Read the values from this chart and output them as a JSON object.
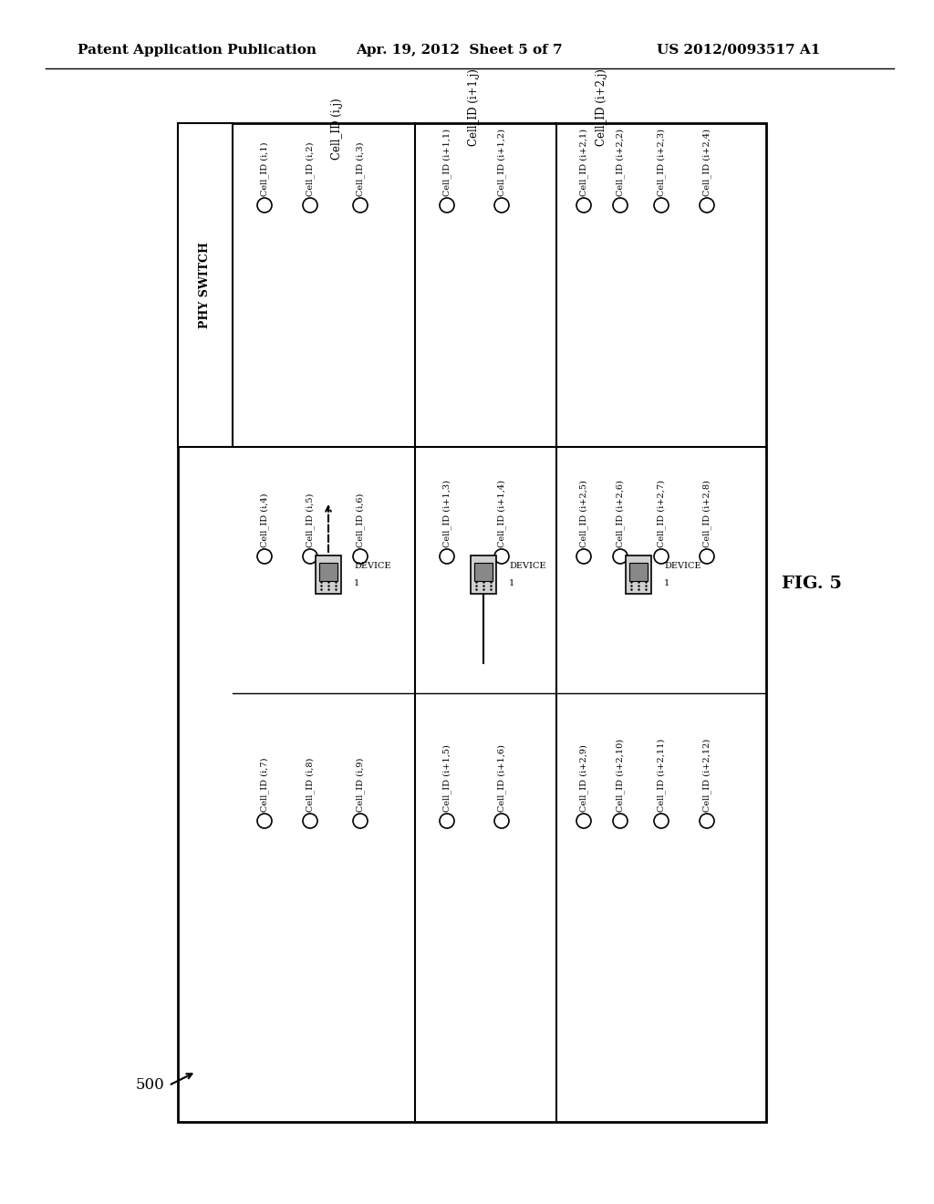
{
  "bg_color": "#ffffff",
  "header_text": "Patent Application Publication",
  "header_date": "Apr. 19, 2012  Sheet 5 of 7",
  "header_patent": "US 2012/0093517 A1",
  "fig_label": "FIG. 5",
  "fig_num": "500",
  "phy_switch_label": "PHY SWITCH",
  "font_size_header": 11,
  "font_size_cell": 7.0,
  "font_size_fig": 14,
  "font_size_section": 8.5,
  "font_size_phy": 9
}
